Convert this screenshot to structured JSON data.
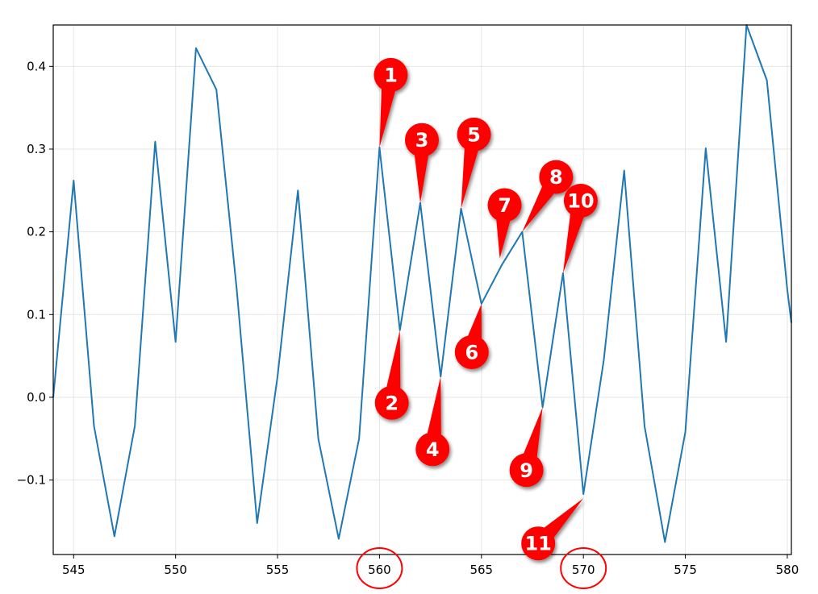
{
  "chart_data": {
    "type": "line",
    "title": "",
    "xlabel": "",
    "ylabel": "",
    "xlim": [
      544,
      580.2
    ],
    "ylim": [
      -0.19,
      0.45
    ],
    "grid": true,
    "x_ticks": [
      "545",
      "550",
      "555",
      "560",
      "565",
      "570",
      "575",
      "580"
    ],
    "y_ticks": [
      "−0.1",
      "0.0",
      "0.1",
      "0.2",
      "0.3",
      "0.4"
    ],
    "series": [
      {
        "color": "#1f77b4",
        "x": [
          544,
          545,
          546,
          547,
          548,
          549,
          550,
          551,
          552,
          553,
          554,
          555,
          556,
          557,
          558,
          559,
          560,
          561,
          562,
          563,
          564,
          565,
          566,
          567,
          568,
          569,
          570,
          571,
          572,
          573,
          574,
          575,
          576,
          577,
          578,
          579,
          580,
          580.2
        ],
        "y": [
          0.0,
          0.262,
          -0.035,
          -0.168,
          -0.035,
          0.309,
          0.067,
          0.422,
          0.372,
          0.13,
          -0.152,
          0.025,
          0.25,
          -0.05,
          -0.171,
          -0.05,
          0.302,
          0.081,
          0.235,
          0.025,
          0.228,
          0.113,
          0.16,
          0.2,
          -0.012,
          0.15,
          -0.117,
          0.045,
          0.274,
          -0.035,
          -0.175,
          -0.042,
          0.301,
          0.067,
          0.45,
          0.383,
          0.13,
          0.09
        ]
      }
    ],
    "annotations": [
      {
        "label": "1",
        "x": 560,
        "y": 0.302
      },
      {
        "label": "2",
        "x": 561,
        "y": 0.081
      },
      {
        "label": "3",
        "x": 562,
        "y": 0.235
      },
      {
        "label": "4",
        "x": 563,
        "y": 0.025
      },
      {
        "label": "5",
        "x": 564,
        "y": 0.228
      },
      {
        "label": "6",
        "x": 565,
        "y": 0.113
      },
      {
        "label": "7",
        "x": 565.9,
        "y": 0.168
      },
      {
        "label": "8",
        "x": 567,
        "y": 0.2
      },
      {
        "label": "9",
        "x": 568,
        "y": -0.012
      },
      {
        "label": "10",
        "x": 569,
        "y": 0.15
      },
      {
        "label": "11",
        "x": 570,
        "y": -0.122
      }
    ],
    "highlighted_ticks": [
      "560",
      "570"
    ],
    "annotation_color": "#ff0000"
  }
}
